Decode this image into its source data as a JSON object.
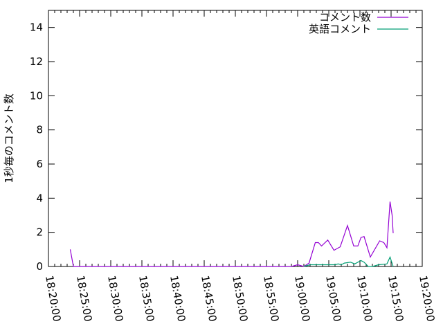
{
  "chart_data": {
    "type": "line",
    "title": "",
    "xlabel": "",
    "ylabel": "1秒毎のコメント数",
    "xlim": [
      "18:20:00",
      "19:20:00"
    ],
    "ylim": [
      0,
      15
    ],
    "x_ticks": [
      "18:20:00",
      "18:25:00",
      "18:30:00",
      "18:35:00",
      "18:40:00",
      "18:45:00",
      "18:50:00",
      "18:55:00",
      "19:00:00",
      "19:05:00",
      "19:10:00",
      "19:15:00",
      "19:20:00"
    ],
    "y_ticks": [
      "0",
      "2",
      "4",
      "6",
      "8",
      "10",
      "12",
      "14"
    ],
    "grid": false,
    "legend_position": "top-right",
    "series": [
      {
        "name": "コメント数",
        "color": "#9400d3",
        "points": [
          [
            "18:23:30",
            1.0
          ],
          [
            "18:24:00",
            0
          ],
          [
            "18:59:00",
            0
          ],
          [
            "19:00:00",
            0.1
          ],
          [
            "19:01:00",
            0
          ],
          [
            "19:01:50",
            0.2
          ],
          [
            "19:02:50",
            1.4
          ],
          [
            "19:03:20",
            1.4
          ],
          [
            "19:03:50",
            1.2
          ],
          [
            "19:04:50",
            1.55
          ],
          [
            "19:05:50",
            0.95
          ],
          [
            "19:06:50",
            1.15
          ],
          [
            "19:08:00",
            2.4
          ],
          [
            "19:09:00",
            1.2
          ],
          [
            "19:09:40",
            1.2
          ],
          [
            "19:10:10",
            1.7
          ],
          [
            "19:10:40",
            1.75
          ],
          [
            "19:11:40",
            0.55
          ],
          [
            "19:13:10",
            1.5
          ],
          [
            "19:13:50",
            1.4
          ],
          [
            "19:14:20",
            1.1
          ],
          [
            "19:14:50",
            3.8
          ],
          [
            "19:15:10",
            3.0
          ],
          [
            "19:15:20",
            1.95
          ]
        ]
      },
      {
        "name": "英語コメント",
        "color": "#009e73",
        "points": [
          [
            "19:01:00",
            0
          ],
          [
            "19:02:00",
            0.1
          ],
          [
            "19:06:00",
            0.1
          ],
          [
            "19:06:30",
            0.15
          ],
          [
            "19:07:00",
            0.1
          ],
          [
            "19:07:30",
            0.2
          ],
          [
            "19:08:30",
            0.25
          ],
          [
            "19:09:10",
            0.15
          ],
          [
            "19:10:10",
            0.35
          ],
          [
            "19:10:40",
            0.25
          ],
          [
            "19:11:20",
            0
          ],
          [
            "19:12:00",
            0
          ],
          [
            "19:13:00",
            0.1
          ],
          [
            "19:14:20",
            0.15
          ],
          [
            "19:14:50",
            0.55
          ],
          [
            "19:15:20",
            0
          ]
        ]
      }
    ]
  }
}
